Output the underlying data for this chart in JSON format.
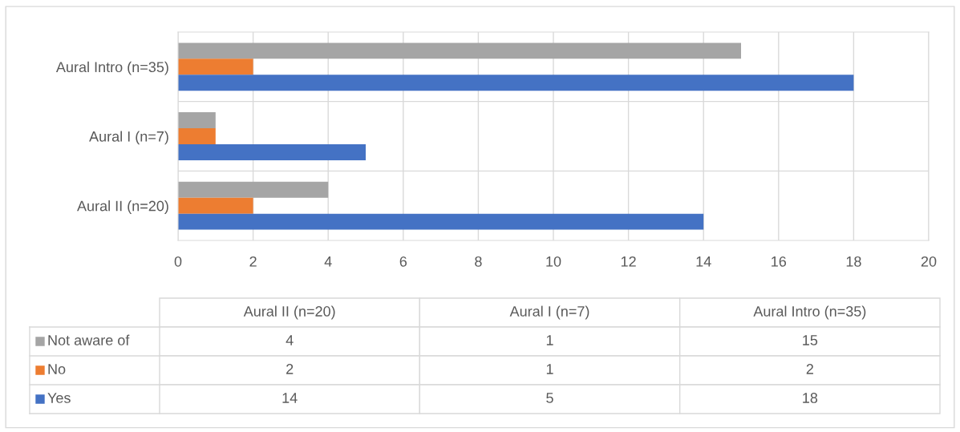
{
  "chart_data": [
    {
      "type": "bar",
      "orientation": "horizontal",
      "categories": [
        "Aural Intro (n=35)",
        "Aural I (n=7)",
        "Aural II (n=20)"
      ],
      "series": [
        {
          "name": "Not aware of",
          "color": "#a5a5a5",
          "values": [
            15,
            1,
            4
          ]
        },
        {
          "name": "No",
          "color": "#ed7d31",
          "values": [
            2,
            1,
            2
          ]
        },
        {
          "name": "Yes",
          "color": "#4472c4",
          "values": [
            18,
            5,
            14
          ]
        }
      ],
      "xlim": [
        0,
        20
      ],
      "xticks": [
        0,
        2,
        4,
        6,
        8,
        10,
        12,
        14,
        16,
        18,
        20
      ],
      "grid": true,
      "legend": "bottom"
    },
    {
      "type": "other",
      "categories": [
        "Aural II (n=20)",
        "Aural I (n=7)",
        "Aural Intro (n=35)"
      ],
      "cell_labels": [
        [
          "4",
          "1",
          "15"
        ],
        [
          "2",
          "1",
          "2"
        ],
        [
          "14",
          "5",
          "18"
        ]
      ]
    }
  ]
}
